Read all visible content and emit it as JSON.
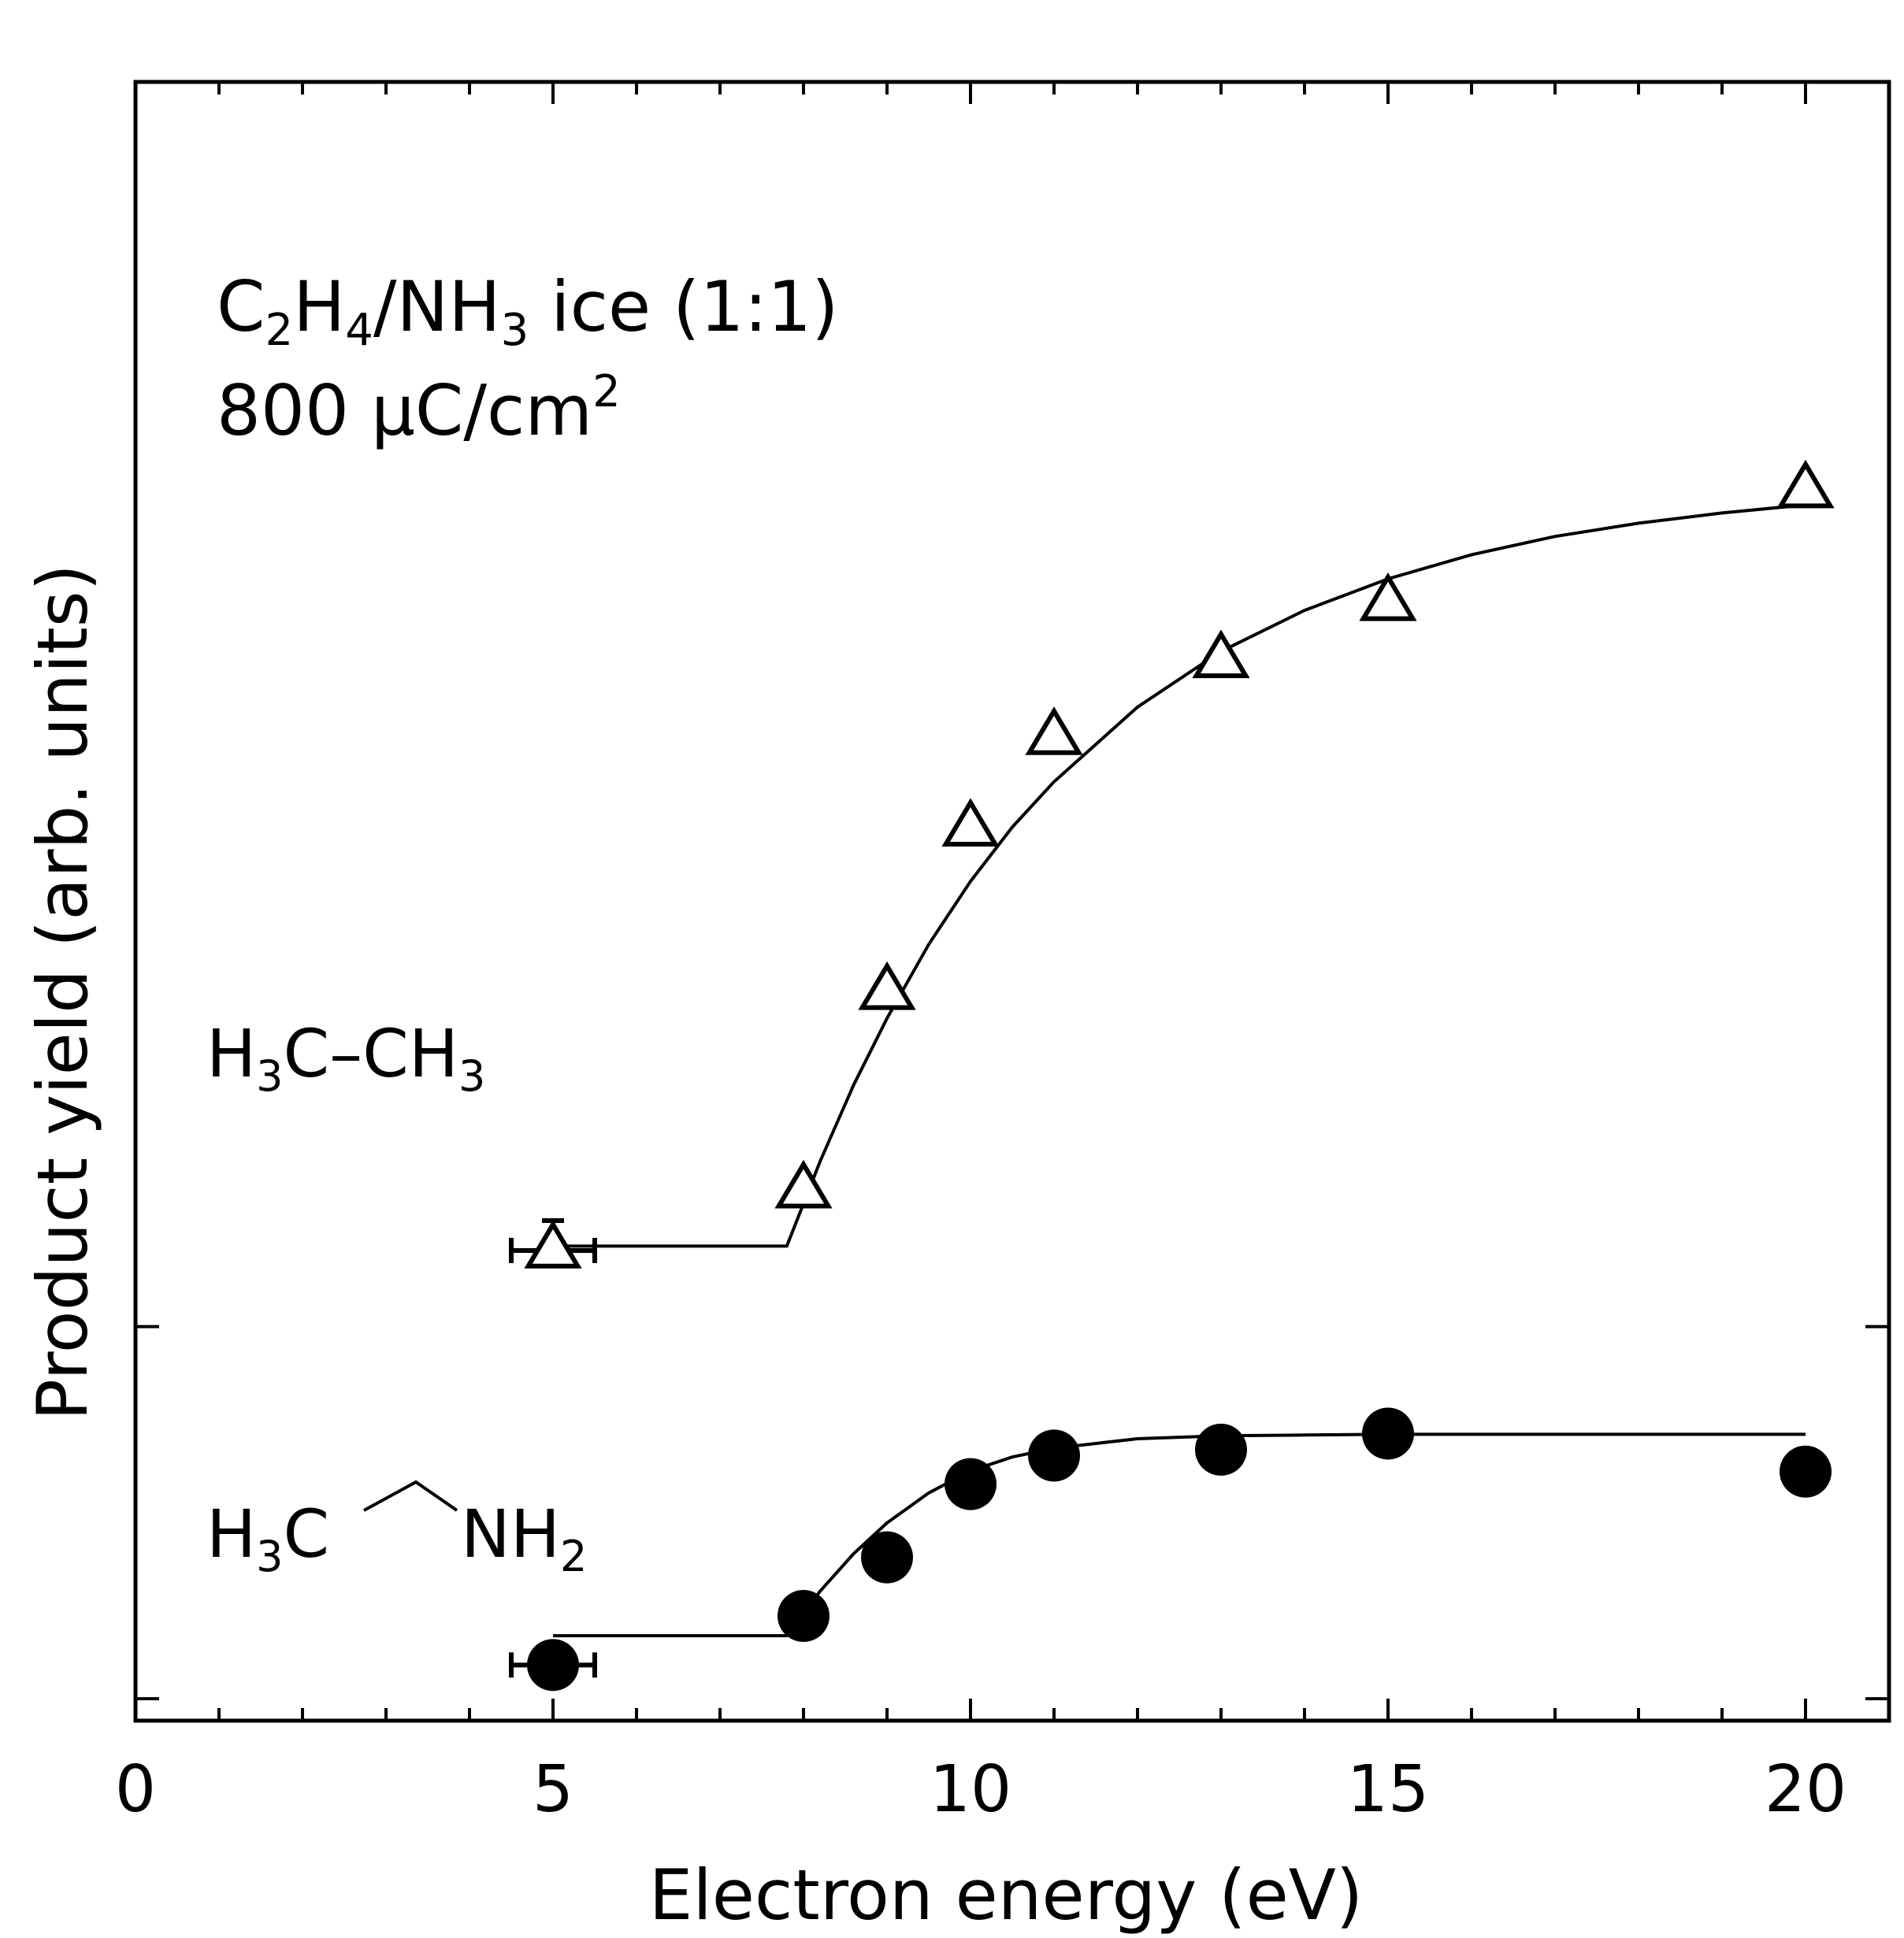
{
  "chart_data": {
    "type": "scatter",
    "xlabel": "Electron energy (eV)",
    "ylabel": "Product yield (arb. units)",
    "xlim": [
      0,
      21
    ],
    "ylim": [
      0,
      10
    ],
    "xticks": [
      0,
      5,
      10,
      15,
      20
    ],
    "xtick_labels": [
      "0",
      "5",
      "10",
      "15",
      "20"
    ],
    "yticks_right": [
      0.3,
      5.38
    ],
    "grid": false,
    "annotation": {
      "line1": {
        "main1": "C",
        "sub1": "2",
        "main2": "H",
        "sub2": "4",
        "main3": "/NH",
        "sub3": "3",
        "main4": " ice (1:1)"
      },
      "line2": {
        "main": "800 μC/cm",
        "sup": "2"
      }
    },
    "series": [
      {
        "label": {
          "a": "H",
          "a_sub": "3",
          "b": "C–CH",
          "b_sub": "3"
        },
        "marker": "open-triangle",
        "x": [
          5,
          8,
          9,
          10,
          11,
          13,
          15,
          20
        ],
        "y": [
          6.42,
          7.24,
          9.95,
          12.18,
          13.43,
          14.48,
          15.26,
          16.8
        ],
        "xerr_first": 0.5,
        "fit": {
          "x": [
            5,
            7.8,
            8.2,
            8.6,
            9,
            9.5,
            10,
            10.5,
            11,
            12,
            13,
            14,
            15,
            16,
            17,
            18,
            19,
            20
          ],
          "y": [
            6.48,
            6.48,
            7.64,
            8.68,
            9.59,
            10.6,
            11.46,
            12.2,
            12.82,
            13.84,
            14.6,
            15.16,
            15.59,
            15.92,
            16.17,
            16.35,
            16.49,
            16.6
          ]
        }
      },
      {
        "label": {
          "a": "H",
          "a_sub": "3",
          "b": "C",
          "c": "NH",
          "c_sub": "2"
        },
        "marker": "filled-circle",
        "x": [
          5,
          8,
          9,
          10,
          11,
          13,
          15,
          20
        ],
        "y": [
          0.76,
          1.43,
          2.23,
          3.23,
          3.62,
          3.7,
          3.92,
          3.4
        ],
        "xerr_first": 0.5,
        "fit": {
          "x": [
            5,
            7.8,
            8.2,
            8.6,
            9,
            9.5,
            10,
            10.5,
            11,
            12,
            13,
            14,
            15,
            16,
            17,
            18,
            19,
            20
          ],
          "y": [
            1.16,
            1.16,
            1.77,
            2.28,
            2.7,
            3.11,
            3.41,
            3.6,
            3.72,
            3.85,
            3.89,
            3.9,
            3.91,
            3.91,
            3.91,
            3.91,
            3.91,
            3.91
          ]
        }
      }
    ]
  }
}
